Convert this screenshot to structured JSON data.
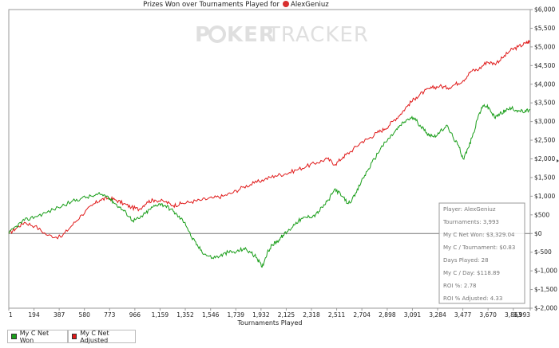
{
  "chart_data": {
    "type": "line",
    "title": "Prizes Won over Tournaments Played for",
    "player_name": "AlexGeniuz",
    "watermark_left": "P",
    "watermark_mid": "KER",
    "watermark_right": "TRACKER",
    "xlabel": "Tournaments Played",
    "ylabel": "",
    "xlim": [
      1,
      3993
    ],
    "ylim": [
      -2000,
      6000
    ],
    "x_ticks": [
      "1",
      "194",
      "387",
      "580",
      "773",
      "966",
      "1,159",
      "1,352",
      "1,546",
      "1,739",
      "1,932",
      "2,125",
      "2,318",
      "2,511",
      "2,704",
      "2,898",
      "3,091",
      "3,284",
      "3,477",
      "3,670",
      "3,863",
      "3,993"
    ],
    "x_tick_values": [
      1,
      194,
      387,
      580,
      773,
      966,
      1159,
      1352,
      1546,
      1739,
      1932,
      2125,
      2318,
      2511,
      2704,
      2898,
      3091,
      3284,
      3477,
      3670,
      3863,
      3993
    ],
    "y_ticks": [
      "$6,000",
      "$5,500",
      "$5,000",
      "$4,500",
      "$4,000",
      "$3,500",
      "$3,000",
      "$2,500",
      "$2,000",
      "$1,500",
      "$1,000",
      "$500",
      "$0",
      "$-500",
      "$-1,000",
      "$-1,500",
      "$-2,000"
    ],
    "y_tick_values": [
      6000,
      5500,
      5000,
      4500,
      4000,
      3500,
      3000,
      2500,
      2000,
      1500,
      1000,
      500,
      0,
      -500,
      -1000,
      -1500,
      -2000
    ],
    "series": [
      {
        "name": "My C Net Won",
        "color": "#1a9e1a",
        "x": [
          1,
          60,
          120,
          200,
          280,
          380,
          480,
          560,
          640,
          700,
          760,
          800,
          850,
          900,
          950,
          1000,
          1050,
          1100,
          1150,
          1200,
          1260,
          1300,
          1350,
          1400,
          1450,
          1500,
          1560,
          1620,
          1680,
          1740,
          1800,
          1850,
          1900,
          1940,
          1980,
          2020,
          2060,
          2100,
          2150,
          2200,
          2250,
          2300,
          2350,
          2400,
          2450,
          2500,
          2550,
          2600,
          2650,
          2700,
          2750,
          2800,
          2850,
          2900,
          2950,
          3000,
          3050,
          3100,
          3150,
          3200,
          3250,
          3300,
          3350,
          3400,
          3450,
          3480,
          3520,
          3560,
          3600,
          3640,
          3680,
          3720,
          3760,
          3800,
          3850,
          3900,
          3950,
          3993
        ],
        "y": [
          0,
          200,
          350,
          450,
          550,
          700,
          850,
          950,
          1000,
          1050,
          1000,
          850,
          700,
          550,
          350,
          400,
          550,
          700,
          800,
          750,
          600,
          450,
          300,
          -100,
          -350,
          -550,
          -650,
          -600,
          -500,
          -500,
          -400,
          -500,
          -650,
          -900,
          -500,
          -300,
          -200,
          -50,
          100,
          300,
          400,
          450,
          500,
          700,
          900,
          1200,
          1000,
          800,
          1000,
          1400,
          1700,
          2000,
          2300,
          2500,
          2700,
          2900,
          3050,
          3100,
          2900,
          2700,
          2600,
          2700,
          2900,
          2600,
          2300,
          2000,
          2300,
          2700,
          3200,
          3450,
          3350,
          3100,
          3200,
          3300,
          3350,
          3300,
          3250,
          3329
        ]
      },
      {
        "name": "My C Net Adjusted",
        "color": "#e01a1a",
        "x": [
          1,
          60,
          120,
          200,
          300,
          400,
          480,
          560,
          640,
          700,
          760,
          820,
          880,
          940,
          1000,
          1060,
          1120,
          1200,
          1260,
          1320,
          1400,
          1480,
          1560,
          1640,
          1720,
          1800,
          1880,
          1960,
          2040,
          2120,
          2200,
          2280,
          2360,
          2440,
          2500,
          2560,
          2620,
          2700,
          2760,
          2820,
          2880,
          2940,
          3000,
          3060,
          3120,
          3180,
          3240,
          3300,
          3360,
          3420,
          3480,
          3540,
          3600,
          3660,
          3720,
          3780,
          3840,
          3900,
          3960,
          3993
        ],
        "y": [
          0,
          150,
          300,
          200,
          -50,
          -100,
          200,
          500,
          750,
          900,
          950,
          900,
          800,
          700,
          650,
          850,
          900,
          850,
          750,
          800,
          850,
          900,
          950,
          1000,
          1100,
          1250,
          1350,
          1450,
          1550,
          1600,
          1700,
          1800,
          1900,
          2000,
          1850,
          2050,
          2200,
          2450,
          2550,
          2700,
          2800,
          3000,
          3200,
          3450,
          3650,
          3800,
          3900,
          3950,
          3900,
          4000,
          4100,
          4350,
          4400,
          4600,
          4550,
          4700,
          4900,
          5000,
          5100,
          5150
        ]
      }
    ],
    "legend_position": "bottom-left",
    "grid": false,
    "stats": {
      "player": "Player: AlexGeniuz",
      "tournaments": "Tournaments: 3,993",
      "net_won": "My C Net Won: $3,329.04",
      "per_tournament": "My C / Tournament: $0.83",
      "days_played": "Days Played: 28",
      "per_day": "My C / Day: $118.89",
      "roi": "ROI %: 2.78",
      "roi_adjusted": "ROI % Adjusted: 4.33"
    }
  }
}
